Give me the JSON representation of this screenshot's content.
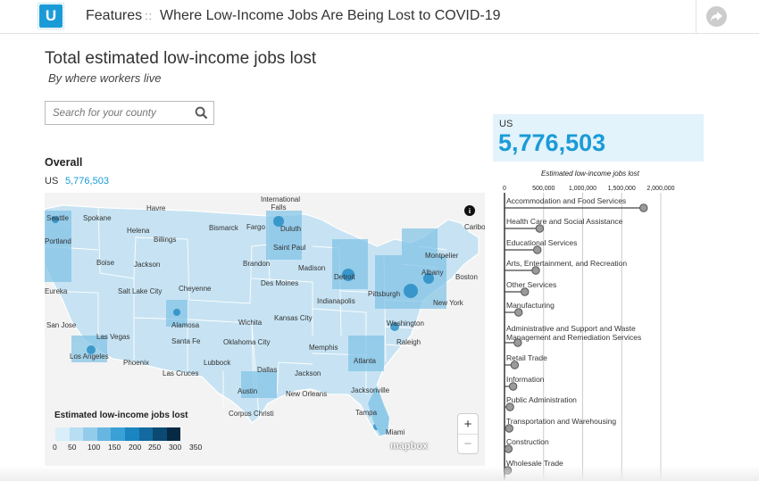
{
  "header": {
    "logo_letter": "U",
    "section": "Features",
    "separator": "::",
    "title": "Where Low-Income Jobs Are Being Lost to COVID-19",
    "share_icon": "share-arrow-icon"
  },
  "page": {
    "heading": "Total estimated low-income jobs lost",
    "subheading": "By where workers live"
  },
  "search": {
    "placeholder": "Search for your county",
    "icon": "search-icon"
  },
  "overall": {
    "label": "Overall",
    "location": "US",
    "value": "5,776,503"
  },
  "map": {
    "city_labels": [
      "Havre",
      "International Falls",
      "Seattle",
      "Spokane",
      "Helena",
      "Billings",
      "Bismarck",
      "Fargo",
      "Duluth",
      "Portland",
      "Boise",
      "Jackson",
      "Brandon",
      "Saint Paul",
      "Madison",
      "Montpelier",
      "Caribou",
      "Albany",
      "Boston",
      "Detroit",
      "Salt Lake City",
      "Cheyenne",
      "Des Moines",
      "Pittsburgh",
      "New York",
      "Indianapolis",
      "Kansas City",
      "Washington",
      "San Jose",
      "Alamosa",
      "Wichita",
      "Las Vegas",
      "Santa Fe",
      "Oklahoma City",
      "Memphis",
      "Raleigh",
      "Los Angeles",
      "Phoenix",
      "Lubbock",
      "Atlanta",
      "Las Cruces",
      "Dallas",
      "Jackson",
      "Austin",
      "New Orleans",
      "Jacksonville",
      "Corpus Christi",
      "Tampa",
      "Miami",
      "Eureka"
    ],
    "info_icon": "info-icon",
    "zoom_in": "+",
    "zoom_out": "−",
    "attribution": "mapbox",
    "legend": {
      "title": "Estimated low-income jobs lost",
      "ticks": [
        "0",
        "50",
        "100",
        "150",
        "200",
        "250",
        "300",
        "350"
      ],
      "colors": [
        "#d9eef8",
        "#b8def2",
        "#93cceb",
        "#66b6e1",
        "#3aa0d6",
        "#1a85c0",
        "#126aa0",
        "#0b4a72",
        "#062a44"
      ]
    }
  },
  "us_summary": {
    "location": "US",
    "value": "5,776,503"
  },
  "chart_data": {
    "type": "scatter",
    "title": "Estimated low-income jobs lost",
    "xlim": [
      0,
      2000000
    ],
    "x_ticks": [
      "0",
      "500,000",
      "1,000,000",
      "1,500,000",
      "2,000,000"
    ],
    "categories": [
      "Accommodation and Food Services",
      "Health Care and Social Assistance",
      "Educational Services",
      "Arts, Entertainment, and Recreation",
      "Other Services",
      "Manufacturing",
      "Administrative and Support and Waste Management and Remediation Services",
      "Retail Trade",
      "Information",
      "Public Administration",
      "Transportation and Warehousing",
      "Construction",
      "Wholesale Trade"
    ],
    "values": [
      1780000,
      450000,
      420000,
      400000,
      260000,
      180000,
      170000,
      130000,
      110000,
      70000,
      60000,
      50000,
      40000
    ]
  }
}
